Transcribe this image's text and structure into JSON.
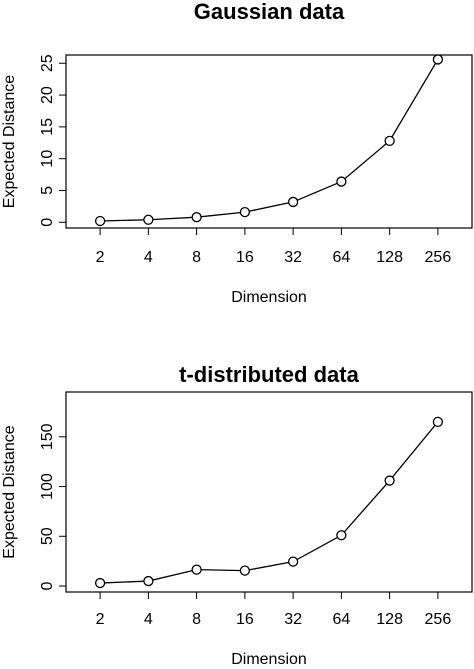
{
  "chart_data": [
    {
      "type": "line",
      "title": "Gaussian data",
      "x_label": "Dimension",
      "y_label": "Expected Distance",
      "categories": [
        "2",
        "4",
        "8",
        "16",
        "32",
        "64",
        "128",
        "256"
      ],
      "values": [
        0.2,
        0.4,
        0.8,
        1.6,
        3.2,
        6.4,
        12.8,
        25.6
      ],
      "color": "#000000",
      "ylim": [
        -0.9,
        26.3
      ],
      "yticks": [
        0,
        5,
        10,
        15,
        20,
        25
      ]
    },
    {
      "type": "line",
      "title": "t-distributed data",
      "x_label": "Dimension",
      "y_label": "Expected Distance",
      "categories": [
        "2",
        "4",
        "8",
        "16",
        "32",
        "64",
        "128",
        "256"
      ],
      "values": [
        3,
        5,
        16.5,
        15.5,
        24.5,
        51,
        106,
        165
      ],
      "color": "#000000",
      "ylim": [
        -6,
        195
      ],
      "yticks": [
        0,
        50,
        100,
        150
      ]
    }
  ]
}
